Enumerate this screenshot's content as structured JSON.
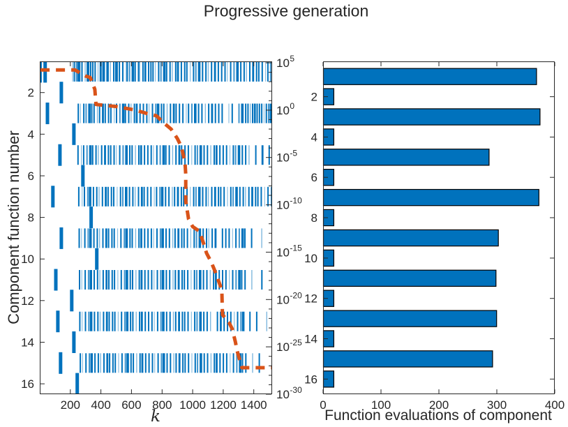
{
  "title": "Progressive generation",
  "colors": {
    "blue": "#0072BD",
    "orange": "#D95319",
    "axis": "#262626",
    "bar_edge": "#000000",
    "background": "#ffffff"
  },
  "chart_data": [
    {
      "type": "scatter",
      "name": "progressive-generation-raster",
      "xlabel": "k",
      "ylabel": "Component function number",
      "xlim": [
        0,
        1520
      ],
      "ylim": [
        0.5,
        16.5
      ],
      "xticks": [
        200,
        400,
        600,
        800,
        1000,
        1200,
        1400
      ],
      "yticks": [
        2,
        4,
        6,
        8,
        10,
        12,
        14,
        16
      ],
      "right_axis": {
        "scale": "log",
        "base": "10",
        "tick_exponents": [
          5,
          0,
          -5,
          -10,
          -15,
          -20,
          -25,
          -30
        ],
        "lim_exponents": [
          5,
          -30
        ]
      },
      "rows": [
        {
          "component": 1,
          "marks": [
            2,
            35,
            215,
            226,
            240,
            254,
            261,
            276,
            297,
            311,
            318,
            333,
            347,
            362,
            381,
            396,
            403,
            418,
            440,
            447,
            462,
            484,
            499,
            506,
            521,
            543,
            565,
            572,
            587,
            609,
            624,
            646,
            653,
            675,
            690,
            712,
            727,
            741,
            756,
            778,
            793,
            815,
            830,
            852,
            867,
            889,
            904,
            926,
            948,
            962,
            984,
            1006,
            1021,
            1043,
            1065,
            1087,
            1102,
            1124,
            1146,
            1168,
            1190,
            1212,
            1227,
            1249,
            1271,
            1293,
            1315,
            1337,
            1352,
            1374,
            1396,
            1418,
            1433,
            1455,
            1477,
            1492,
            1510
          ]
        },
        {
          "component": 2,
          "marks": [
            141
          ]
        },
        {
          "component": 3,
          "marks": [
            50,
            252,
            266,
            288,
            303,
            325,
            340,
            355,
            377,
            391,
            413,
            428,
            450,
            465,
            487,
            502,
            524,
            546,
            560,
            582,
            597,
            619,
            634,
            656,
            678,
            700,
            715,
            737,
            759,
            774,
            796,
            811,
            833,
            855,
            877,
            892,
            914,
            936,
            958,
            973,
            995,
            1017,
            1039,
            1061,
            1083,
            1105,
            1127,
            1149,
            1171,
            1193,
            1237,
            1259,
            1303,
            1325,
            1347,
            1362,
            1377,
            1392,
            1407,
            1422,
            1437,
            1452,
            1467,
            1482,
            1497,
            1512
          ]
        },
        {
          "component": 4,
          "marks": [
            223
          ]
        },
        {
          "component": 5,
          "marks": [
            132,
            250,
            272,
            287,
            309,
            331,
            346,
            368,
            383,
            405,
            427,
            449,
            464,
            486,
            501,
            523,
            545,
            567,
            589,
            604,
            626,
            648,
            663,
            685,
            707,
            729,
            744,
            766,
            788,
            810,
            825,
            847,
            869,
            891,
            913,
            928,
            950,
            972,
            994,
            1016,
            1031,
            1053,
            1075,
            1097,
            1119,
            1141,
            1156,
            1178,
            1200,
            1222,
            1244,
            1266,
            1281,
            1303,
            1325,
            1347,
            1369,
            1413,
            1457,
            1501
          ]
        },
        {
          "component": 6,
          "marks": [
            282
          ]
        },
        {
          "component": 7,
          "marks": [
            86,
            255,
            277,
            292,
            314,
            329,
            351,
            373,
            388,
            410,
            432,
            447,
            469,
            484,
            506,
            528,
            543,
            565,
            587,
            609,
            624,
            646,
            668,
            683,
            705,
            727,
            749,
            764,
            786,
            801,
            823,
            845,
            867,
            882,
            904,
            926,
            941,
            963,
            985,
            1007,
            1022,
            1044,
            1066,
            1088,
            1103,
            1125,
            1147,
            1169,
            1184,
            1206,
            1228,
            1250,
            1265,
            1287,
            1309,
            1331,
            1346,
            1368,
            1390,
            1412,
            1427,
            1449,
            1471,
            1493,
            1515
          ]
        },
        {
          "component": 8,
          "marks": [
            336
          ]
        },
        {
          "component": 9,
          "marks": [
            141,
            258,
            273,
            295,
            317,
            332,
            354,
            376,
            391,
            413,
            435,
            450,
            472,
            487,
            509,
            531,
            553,
            568,
            590,
            605,
            627,
            649,
            664,
            686,
            708,
            730,
            745,
            767,
            789,
            804,
            826,
            848,
            870,
            885,
            907,
            929,
            944,
            966,
            988,
            1010,
            1025,
            1047,
            1069,
            1091,
            1106,
            1128,
            1150,
            1195,
            1217,
            1239,
            1261,
            1283,
            1305,
            1327,
            1342,
            1386,
            1452
          ]
        },
        {
          "component": 10,
          "marks": [
            373
          ]
        },
        {
          "component": 11,
          "marks": [
            105,
            260,
            275,
            297,
            319,
            334,
            356,
            378,
            393,
            415,
            437,
            452,
            474,
            489,
            511,
            533,
            555,
            570,
            592,
            607,
            629,
            651,
            666,
            688,
            710,
            732,
            747,
            769,
            791,
            806,
            828,
            850,
            872,
            887,
            909,
            931,
            946,
            968,
            990,
            1012,
            1027,
            1049,
            1071,
            1093,
            1115,
            1137,
            1152,
            1174,
            1196,
            1218,
            1240,
            1262,
            1284,
            1306,
            1321,
            1343,
            1387,
            1453
          ]
        },
        {
          "component": 12,
          "marks": [
            209
          ]
        },
        {
          "component": 13,
          "marks": [
            118,
            262,
            277,
            299,
            321,
            336,
            358,
            380,
            395,
            417,
            439,
            454,
            476,
            491,
            513,
            535,
            557,
            572,
            594,
            609,
            631,
            653,
            668,
            690,
            712,
            734,
            749,
            771,
            793,
            808,
            830,
            852,
            874,
            889,
            911,
            933,
            948,
            970,
            992,
            1014,
            1029,
            1051,
            1073,
            1095,
            1117,
            1162,
            1184,
            1206,
            1228,
            1250,
            1272,
            1294,
            1316,
            1331,
            1375,
            1419,
            1485
          ]
        },
        {
          "component": 14,
          "marks": [
            223
          ]
        },
        {
          "component": 15,
          "marks": [
            136,
            265,
            280,
            302,
            324,
            339,
            361,
            383,
            398,
            420,
            442,
            457,
            479,
            494,
            516,
            538,
            560,
            575,
            597,
            612,
            634,
            656,
            671,
            693,
            715,
            737,
            752,
            774,
            796,
            811,
            833,
            855,
            877,
            892,
            914,
            936,
            951,
            973,
            995,
            1017,
            1032,
            1054,
            1076,
            1098,
            1120,
            1142,
            1157,
            1179,
            1201,
            1223,
            1245,
            1267,
            1289,
            1311,
            1326,
            1348,
            1392,
            1436
          ]
        },
        {
          "component": 16,
          "marks": [
            245
          ]
        }
      ],
      "error_curve": {
        "series_name": "error-decay",
        "points": [
          [
            5,
            4.25
          ],
          [
            230,
            4.25
          ],
          [
            300,
            3.6
          ],
          [
            330,
            3.45
          ],
          [
            360,
            2.2
          ],
          [
            368,
            0.6
          ],
          [
            500,
            0.38
          ],
          [
            560,
            0.2
          ],
          [
            627,
            0.0
          ],
          [
            700,
            -0.35
          ],
          [
            764,
            -0.6
          ],
          [
            800,
            -1.2
          ],
          [
            859,
            -2.0
          ],
          [
            900,
            -3.0
          ],
          [
            927,
            -3.9
          ],
          [
            950,
            -5.5
          ],
          [
            955,
            -6.8
          ],
          [
            955,
            -9.6
          ],
          [
            973,
            -11.5
          ],
          [
            1000,
            -12.3
          ],
          [
            1045,
            -12.8
          ],
          [
            1070,
            -14.0
          ],
          [
            1091,
            -15.1
          ],
          [
            1120,
            -16.0
          ],
          [
            1141,
            -16.8
          ],
          [
            1180,
            -18.5
          ],
          [
            1191,
            -19.0
          ],
          [
            1195,
            -21.6
          ],
          [
            1240,
            -22.5
          ],
          [
            1259,
            -23.1
          ],
          [
            1280,
            -24.5
          ],
          [
            1291,
            -25.4
          ],
          [
            1310,
            -26.5
          ],
          [
            1323,
            -27.2
          ],
          [
            1518,
            -27.2
          ]
        ]
      }
    },
    {
      "type": "bar",
      "orientation": "horizontal",
      "name": "function-evaluations-bars",
      "xlabel": "Function evaluations of component",
      "xticks": [
        0,
        100,
        200,
        300,
        400
      ],
      "yticks": [
        2,
        4,
        6,
        8,
        10,
        12,
        14,
        16
      ],
      "xlim": [
        0,
        400
      ],
      "ylim": [
        0.25,
        16.75
      ],
      "categories": [
        1,
        2,
        3,
        4,
        5,
        6,
        7,
        8,
        9,
        10,
        11,
        12,
        13,
        14,
        15,
        16
      ],
      "values": [
        368,
        18,
        374,
        18,
        286,
        18,
        372,
        18,
        302,
        18,
        298,
        18,
        299,
        18,
        292,
        18
      ]
    }
  ]
}
